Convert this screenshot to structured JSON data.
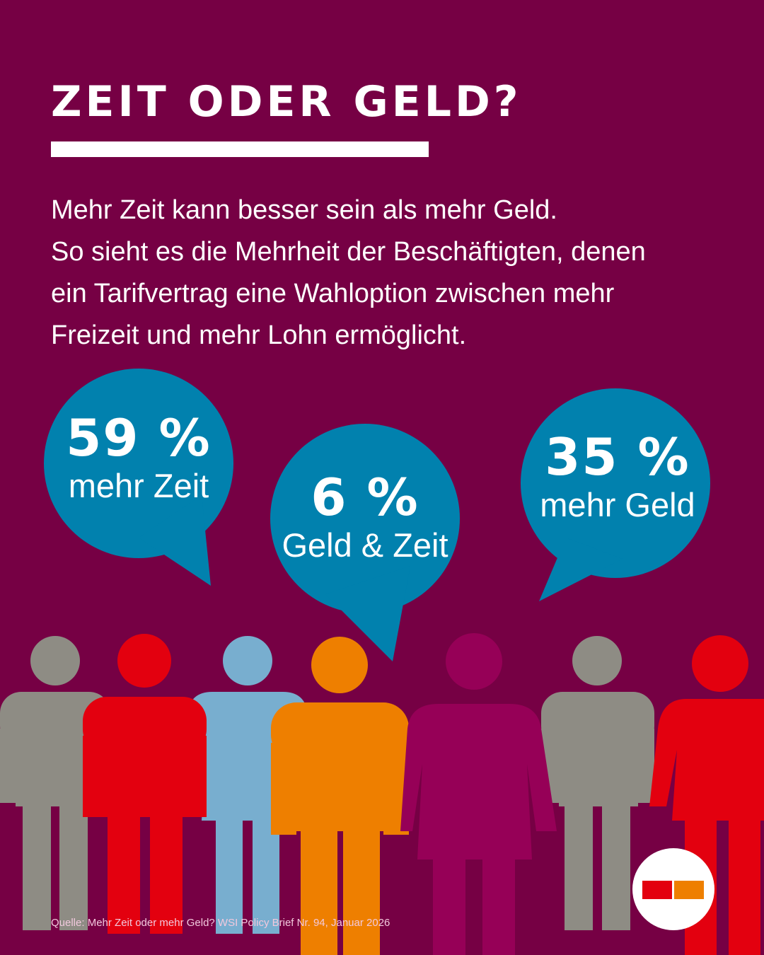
{
  "headline": {
    "title": "ZEIT ODER GELD?",
    "intro_lines": [
      "Mehr Zeit kann besser sein als mehr Geld.",
      "So sieht es die Mehrheit der Beschäftigten, denen",
      "ein Tarifvertrag eine Wahloption zwischen mehr",
      "Freizeit und mehr Lohn ermöglicht."
    ]
  },
  "results": [
    {
      "value": "59 %",
      "label": "mehr Zeit"
    },
    {
      "value": "6 %",
      "label": "Geld & Zeit"
    },
    {
      "value": "35 %",
      "label": "mehr Geld"
    }
  ],
  "source": "Quelle: Mehr Zeit oder mehr Geld?  WSI Policy Brief Nr. 94, Januar 2026",
  "colors": {
    "background": "#760044",
    "bubble": "#0181ae",
    "grey": "#8e8c84",
    "red": "#e3000f",
    "light_blue": "#78aecf",
    "orange": "#ee7f00",
    "magenta": "#960057"
  },
  "icons": [
    "speech-bubble-icon",
    "person-icon",
    "wsi-logo-icon"
  ]
}
